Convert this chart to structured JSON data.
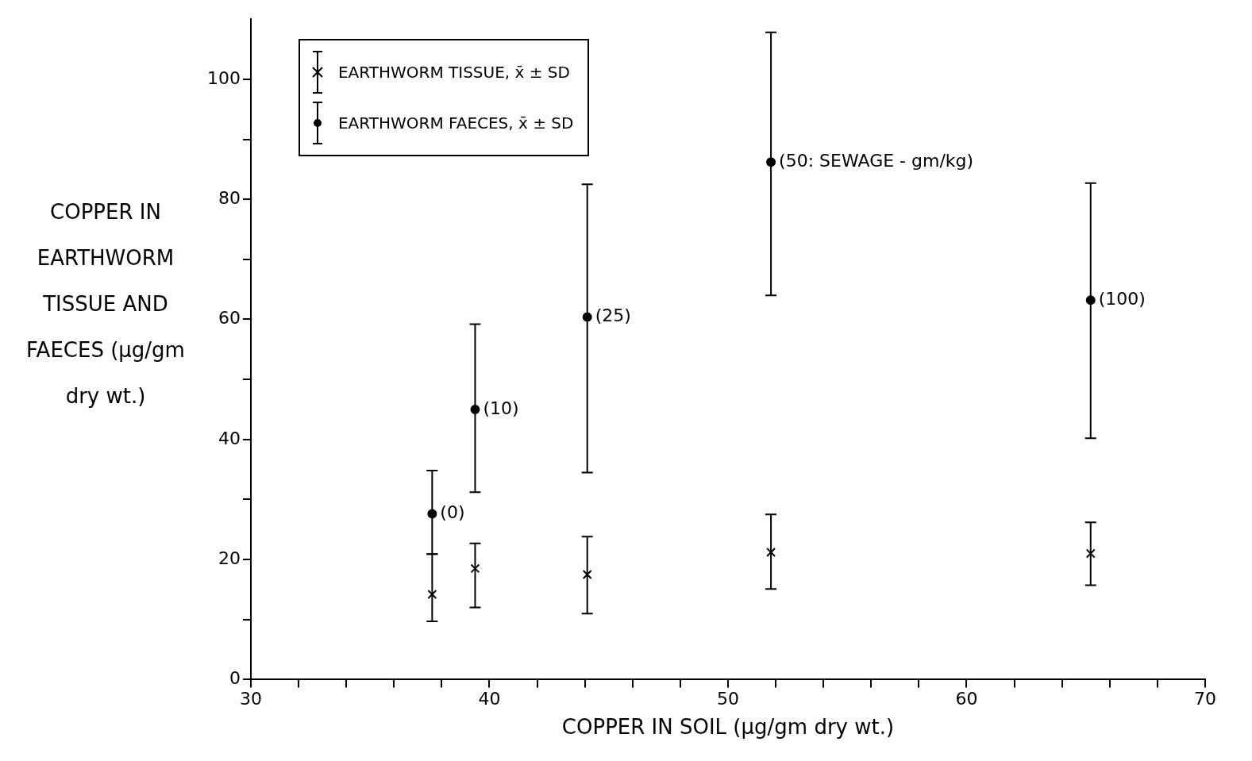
{
  "chart_data": {
    "type": "scatter",
    "xlabel": "COPPER IN SOIL (µg/gm dry wt.)",
    "ylabel": "COPPER IN EARTHWORM TISSUE AND FAECES (µg/gm dry wt.)",
    "x": [
      37.6,
      39.4,
      44.1,
      51.8,
      65.2
    ],
    "series": [
      {
        "name": "EARTHWORM TISSUE, x̄ ± SD",
        "color": "#000000",
        "marker": "cross",
        "values": [
          14.2,
          18.5,
          17.5,
          21.2,
          21.0
        ],
        "errors": [
          [
            9.7,
            20.9
          ],
          [
            12.0,
            22.7
          ],
          [
            11.0,
            23.8
          ],
          [
            15.1,
            27.5
          ],
          [
            15.7,
            26.2
          ]
        ]
      },
      {
        "name": "EARTHWORM FAECES, x̄ ± SD",
        "color": "#000000",
        "marker": "circle",
        "values": [
          27.6,
          45.0,
          60.4,
          86.2,
          63.2
        ],
        "errors": [
          [
            20.9,
            34.8
          ],
          [
            31.2,
            59.2
          ],
          [
            34.5,
            82.5
          ],
          [
            64.0,
            107.8
          ],
          [
            40.2,
            82.7
          ]
        ]
      }
    ],
    "xlim": [
      30,
      70
    ],
    "xticks": [
      30,
      {
        "value": 32,
        "label": null
      },
      {
        "value": 34,
        "label": null
      },
      {
        "value": 36,
        "label": null
      },
      {
        "value": 38,
        "label": null
      },
      40,
      {
        "value": 42,
        "label": null
      },
      {
        "value": 44,
        "label": null
      },
      {
        "value": 46,
        "label": null
      },
      {
        "value": 48,
        "label": null
      },
      50,
      {
        "value": 52,
        "label": null
      },
      {
        "value": 54,
        "label": null
      },
      {
        "value": 56,
        "label": null
      },
      {
        "value": 58,
        "label": null
      },
      60,
      {
        "value": 62,
        "label": null
      },
      {
        "value": 64,
        "label": null
      },
      {
        "value": 66,
        "label": null
      },
      {
        "value": 68,
        "label": null
      },
      70
    ],
    "ylim": [
      0,
      110
    ],
    "yticks": [
      0,
      {
        "value": 10,
        "label": null
      },
      20,
      {
        "value": 30,
        "label": null
      },
      40,
      {
        "value": 50,
        "label": null
      },
      60,
      {
        "value": 70,
        "label": null
      },
      80,
      {
        "value": 90,
        "label": null
      },
      100
    ],
    "annotations": [
      {
        "text": "(0)",
        "x": 37.6,
        "y": 27.6
      },
      {
        "text": "(10)",
        "x": 39.4,
        "y": 45.0
      },
      {
        "text": "(25)",
        "x": 44.1,
        "y": 60.4
      },
      {
        "text": "(50: SEWAGE - gm/kg)",
        "x": 51.8,
        "y": 86.2
      },
      {
        "text": "(100)",
        "x": 65.2,
        "y": 63.2
      }
    ],
    "legend": "top left",
    "grid": false
  }
}
